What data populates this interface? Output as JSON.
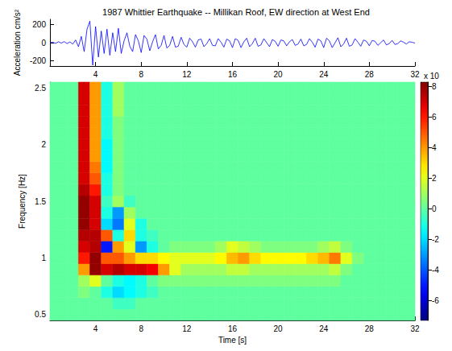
{
  "chart_data": [
    {
      "type": "line",
      "title": "1987 Whittier Earthquake -- Millikan Roof, EW direction at West End",
      "y_label": "Acceleration cm/s²",
      "color": "#0000ff",
      "grid": false,
      "xlim": [
        0,
        32
      ],
      "xticks": [
        4,
        8,
        12,
        16,
        20,
        24,
        28,
        32
      ],
      "ylim": [
        -260,
        260
      ],
      "yticks": [
        -200,
        0,
        200
      ],
      "x": [
        0,
        0.25,
        0.5,
        0.75,
        1,
        1.25,
        1.5,
        1.75,
        2,
        2.25,
        2.5,
        2.75,
        3,
        3.25,
        3.5,
        3.75,
        4,
        4.25,
        4.5,
        4.75,
        5,
        5.25,
        5.5,
        5.75,
        6,
        6.25,
        6.5,
        6.75,
        7,
        7.25,
        7.5,
        7.75,
        8,
        8.25,
        8.5,
        8.75,
        9,
        9.25,
        9.5,
        9.75,
        10,
        10.25,
        10.5,
        10.75,
        11,
        11.25,
        11.5,
        11.75,
        12,
        12.25,
        12.5,
        12.75,
        13,
        13.25,
        13.5,
        13.75,
        14,
        14.25,
        14.5,
        14.75,
        15,
        15.25,
        15.5,
        15.75,
        16,
        16.25,
        16.5,
        16.75,
        17,
        17.25,
        17.5,
        17.75,
        18,
        18.25,
        18.5,
        18.75,
        19,
        19.25,
        19.5,
        19.75,
        20,
        20.25,
        20.5,
        20.75,
        21,
        21.25,
        21.5,
        21.75,
        22,
        22.25,
        22.5,
        22.75,
        23,
        23.25,
        23.5,
        23.75,
        24,
        24.25,
        24.5,
        24.75,
        25,
        25.25,
        25.5,
        25.75,
        26,
        26.25,
        26.5,
        26.75,
        27,
        27.25,
        27.5,
        27.75,
        28,
        28.25,
        28.5,
        28.75,
        29,
        29.25,
        29.5,
        29.75,
        30,
        30.25,
        30.5,
        30.75,
        31,
        31.25,
        31.5,
        31.75,
        32
      ],
      "values": [
        0,
        5,
        -8,
        10,
        -5,
        12,
        -10,
        8,
        -15,
        30,
        -45,
        70,
        -100,
        150,
        240,
        -250,
        180,
        -160,
        130,
        -120,
        150,
        -140,
        110,
        -100,
        160,
        -120,
        20,
        110,
        -40,
        -100,
        90,
        20,
        -110,
        80,
        40,
        -90,
        10,
        90,
        -70,
        -30,
        80,
        -60,
        -30,
        70,
        -50,
        -40,
        60,
        -20,
        -50,
        50,
        10,
        -50,
        30,
        40,
        -45,
        -10,
        45,
        -30,
        -35,
        45,
        5,
        -50,
        40,
        20,
        -55,
        45,
        25,
        -55,
        10,
        50,
        -45,
        -10,
        50,
        -40,
        -25,
        45,
        0,
        -45,
        35,
        15,
        -40,
        30,
        20,
        -35,
        10,
        35,
        -30,
        -15,
        40,
        -35,
        -20,
        45,
        5,
        -50,
        40,
        20,
        -55,
        50,
        20,
        -55,
        0,
        55,
        -45,
        -15,
        50,
        -40,
        -25,
        45,
        5,
        -40,
        30,
        15,
        -35,
        25,
        15,
        -30,
        0,
        30,
        -25,
        -10,
        25,
        -20,
        -10,
        20,
        5,
        -15,
        10,
        5,
        -5
      ]
    },
    {
      "type": "heatmap",
      "x_label": "Time [s]",
      "y_label": "Frequency [Hz]",
      "grid": false,
      "xlim": [
        0,
        32
      ],
      "xticks": [
        4,
        8,
        12,
        16,
        20,
        24,
        28,
        32
      ],
      "ylim": [
        0.45,
        2.55
      ],
      "yticks": [
        0.5,
        1,
        1.5,
        2,
        2.5
      ],
      "color_label": "x 10",
      "color_range": [
        -7.3,
        8.3
      ],
      "color_ticks": [
        -6,
        -4,
        -2,
        0,
        2,
        4,
        6,
        8
      ],
      "x": [
        0,
        1,
        2,
        3,
        4,
        5,
        6,
        7,
        8,
        9,
        10,
        11,
        12,
        13,
        14,
        15,
        16,
        17,
        18,
        19,
        20,
        21,
        22,
        23,
        24,
        25,
        26,
        27,
        28,
        29,
        30,
        31,
        32
      ],
      "y": [
        0.5,
        0.6,
        0.7,
        0.8,
        0.9,
        1.0,
        1.1,
        1.2,
        1.3,
        1.4,
        1.5,
        1.6,
        1.7,
        1.8,
        1.9,
        2.0,
        2.1,
        2.2,
        2.3,
        2.4,
        2.5
      ],
      "values": [
        [
          0,
          0,
          0,
          0,
          0,
          0,
          0,
          0,
          0,
          0,
          0,
          0,
          0,
          0,
          0,
          0,
          0,
          0,
          0,
          0,
          0,
          0,
          0,
          0,
          0,
          0,
          0,
          0,
          0,
          0,
          0,
          0,
          0
        ],
        [
          0,
          0,
          0,
          0,
          0,
          0,
          -0.5,
          -0.5,
          0,
          0,
          0,
          0,
          0,
          0,
          0,
          0,
          0,
          0,
          0,
          0,
          0,
          0,
          0,
          0,
          0,
          0,
          0,
          0,
          0,
          0,
          0,
          0,
          0
        ],
        [
          0,
          0,
          0,
          0.5,
          0,
          -1,
          -2,
          -1.5,
          -1,
          -0.5,
          0,
          0,
          0,
          0,
          0,
          0,
          0,
          0,
          0,
          0,
          0,
          0,
          0,
          0,
          0,
          0,
          0,
          0,
          0,
          0,
          0,
          0,
          0
        ],
        [
          0,
          0,
          0,
          1,
          2,
          0,
          -1,
          -1.5,
          -1,
          0,
          0.5,
          0.5,
          0.5,
          0.5,
          0.5,
          0.5,
          0.5,
          0.5,
          0.5,
          0.5,
          0.5,
          0.5,
          0.5,
          0.5,
          0.5,
          0.5,
          0,
          0,
          0,
          0,
          0,
          0,
          0
        ],
        [
          0,
          0,
          0,
          4,
          8,
          7,
          7.5,
          7,
          7,
          6.5,
          4,
          2,
          1,
          1,
          1,
          1,
          1.5,
          1.5,
          1,
          1,
          1,
          1,
          1,
          1,
          1,
          1.5,
          0.5,
          0,
          0,
          0,
          0,
          0,
          0
        ],
        [
          0,
          0,
          0,
          6,
          8,
          5,
          5,
          4,
          3,
          3,
          2.5,
          2,
          2,
          2,
          2,
          2.5,
          3.5,
          4,
          3,
          2.5,
          2.5,
          2.5,
          2.5,
          3,
          3.5,
          4.5,
          2,
          0.5,
          0,
          0,
          0,
          0,
          0
        ],
        [
          0,
          0,
          0,
          7,
          7.5,
          -5,
          4,
          2,
          -3,
          -1,
          0,
          0.5,
          0.5,
          0.5,
          0.5,
          1,
          2,
          1.5,
          1,
          0.5,
          0.5,
          0.5,
          0.5,
          0.5,
          1,
          1.5,
          0.5,
          0,
          0,
          0,
          0,
          0,
          0
        ],
        [
          0,
          0,
          0,
          7.5,
          7.5,
          5,
          -1,
          3,
          -1,
          -0.5,
          0,
          0,
          0,
          0,
          0,
          0,
          0,
          0,
          0,
          0,
          0,
          0,
          0,
          0,
          0,
          0,
          0,
          0,
          0,
          0,
          0,
          0,
          0
        ],
        [
          0,
          0,
          0,
          8,
          7,
          -2,
          -3.5,
          2,
          -1,
          0,
          0,
          0,
          0,
          0,
          0,
          0,
          0,
          0,
          0,
          0,
          0,
          0,
          0,
          0,
          0,
          0,
          0,
          0,
          0,
          0,
          0,
          0,
          0
        ],
        [
          0,
          0,
          0,
          8,
          7,
          -1,
          -3,
          1,
          0,
          0,
          0,
          0,
          0,
          0,
          0,
          0,
          0,
          0,
          0,
          0,
          0,
          0,
          0,
          0,
          0,
          0,
          0,
          0,
          0,
          0,
          0,
          0,
          0
        ],
        [
          0,
          0,
          0,
          8,
          7,
          -0.5,
          1,
          -0.5,
          0,
          0,
          0,
          0,
          0,
          0,
          0,
          0,
          0,
          0,
          0,
          0,
          0,
          0,
          0,
          0,
          0,
          0,
          0,
          0,
          0,
          0,
          0,
          0,
          0
        ],
        [
          0,
          0,
          0,
          7.5,
          6,
          -1,
          0.5,
          0,
          0,
          0,
          0,
          0,
          0,
          0,
          0,
          0,
          0,
          0,
          0,
          0,
          0,
          0,
          0,
          0,
          0,
          0,
          0,
          0,
          0,
          0,
          0,
          0,
          0
        ],
        [
          0,
          0,
          0,
          7,
          5,
          -1,
          0.5,
          0,
          0,
          0,
          0,
          0,
          0,
          0,
          0,
          0,
          0,
          0,
          0,
          0,
          0,
          0,
          0,
          0,
          0,
          0,
          0,
          0,
          0,
          0,
          0,
          0,
          0
        ],
        [
          0,
          0,
          0,
          7,
          4.5,
          -1.5,
          0.5,
          0,
          0,
          0,
          0,
          0,
          0,
          0,
          0,
          0,
          0,
          0,
          0,
          0,
          0,
          0,
          0,
          0,
          0,
          0,
          0,
          0,
          0,
          0,
          0,
          0,
          0
        ],
        [
          0,
          0,
          0,
          7,
          4,
          -1.5,
          0.5,
          0,
          0,
          0,
          0,
          0,
          0,
          0,
          0,
          0,
          0,
          0,
          0,
          0,
          0,
          0,
          0,
          0,
          0,
          0,
          0,
          0,
          0,
          0,
          0,
          0,
          0
        ],
        [
          0,
          0,
          0,
          7,
          4,
          -1.5,
          0.5,
          0,
          0,
          0,
          0,
          0,
          0,
          0,
          0,
          0,
          0,
          0,
          0,
          0,
          0,
          0,
          0,
          0,
          0,
          0,
          0,
          0,
          0,
          0,
          0,
          0,
          0
        ],
        [
          0,
          0,
          0,
          7,
          4,
          -1,
          0.5,
          0,
          0,
          0,
          0,
          0,
          0,
          0,
          0,
          0,
          0,
          0,
          0,
          0,
          0,
          0,
          0,
          0,
          0,
          0,
          0,
          0,
          0,
          0,
          0,
          0,
          0
        ],
        [
          0,
          0,
          0,
          7,
          4,
          -1,
          0.5,
          0,
          0,
          0,
          0,
          0,
          0,
          0,
          0,
          0,
          0,
          0,
          0,
          0,
          0,
          0,
          0,
          0,
          0,
          0,
          0,
          0,
          0,
          0,
          0,
          0,
          0
        ],
        [
          0,
          0,
          0,
          7,
          4,
          -1,
          1,
          0,
          0,
          0,
          0,
          0,
          0,
          0,
          0,
          0,
          0,
          0,
          0,
          0,
          0,
          0,
          0,
          0,
          0,
          0,
          0,
          0,
          0,
          0,
          0,
          0,
          0
        ],
        [
          0,
          0,
          0,
          7,
          4,
          -1,
          1,
          0,
          0,
          0,
          0,
          0,
          0,
          0,
          0,
          0,
          0,
          0,
          0,
          0,
          0,
          0,
          0,
          0,
          0,
          0,
          0,
          0,
          0,
          0,
          0,
          0,
          0
        ],
        [
          0,
          0,
          0,
          7,
          4,
          -1,
          1,
          0,
          0,
          0,
          0,
          0,
          0,
          0,
          0,
          0,
          0,
          0,
          0,
          0,
          0,
          0,
          0,
          0,
          0,
          0,
          0,
          0,
          0,
          0,
          0,
          0,
          0
        ]
      ]
    }
  ]
}
